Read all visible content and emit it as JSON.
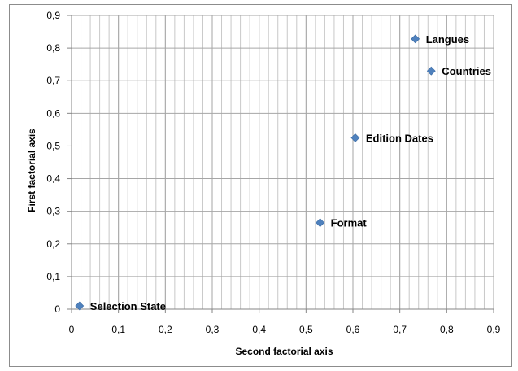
{
  "chart_data": {
    "type": "scatter",
    "xlabel": "Second factorial axis",
    "ylabel": "First factorial axis",
    "xlim": [
      0,
      0.9
    ],
    "ylim": [
      0,
      0.9
    ],
    "x_ticks": [
      "0",
      "0,1",
      "0,2",
      "0,3",
      "0,4",
      "0,5",
      "0,6",
      "0,7",
      "0,8",
      "0,9"
    ],
    "y_ticks": [
      "0",
      "0,1",
      "0,2",
      "0,3",
      "0,4",
      "0,5",
      "0,6",
      "0,7",
      "0,8",
      "0,9"
    ],
    "x_ticks_values": [
      0,
      0.1,
      0.2,
      0.3,
      0.4,
      0.5,
      0.6,
      0.7,
      0.8,
      0.9
    ],
    "y_ticks_values": [
      0,
      0.1,
      0.2,
      0.3,
      0.4,
      0.5,
      0.6,
      0.7,
      0.8,
      0.9
    ],
    "grid": true,
    "minor_x_grid_step": 0.02,
    "legend": "none",
    "marker": "diamond",
    "marker_color": "#4f81bd",
    "points": [
      {
        "label": "Langues",
        "x": 0.733,
        "y": 0.828
      },
      {
        "label": "Countries",
        "x": 0.767,
        "y": 0.73
      },
      {
        "label": "Edition Dates",
        "x": 0.605,
        "y": 0.525
      },
      {
        "label": "Format",
        "x": 0.53,
        "y": 0.265
      },
      {
        "label": "Selection State",
        "x": 0.017,
        "y": 0.01
      }
    ]
  }
}
